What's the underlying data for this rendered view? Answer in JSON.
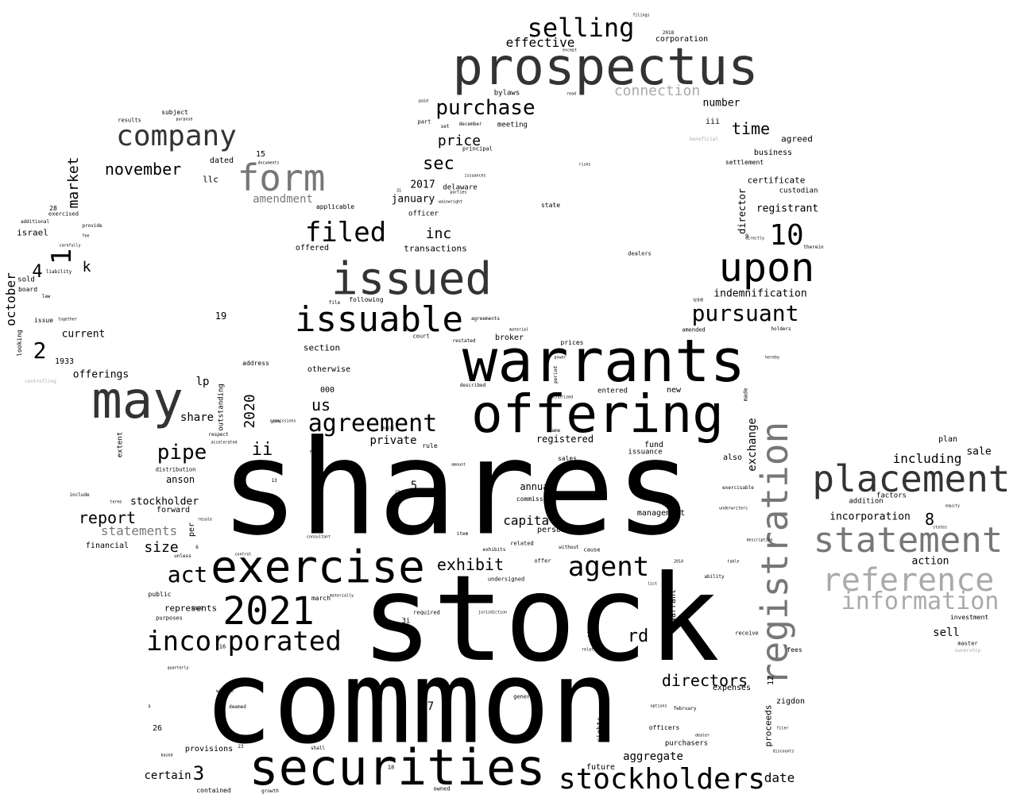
{
  "colors": {
    "background": "#ffffff",
    "black": "#000000",
    "dark": "#333333",
    "mid": "#777777",
    "light": "#aaaaaa"
  },
  "words": [
    {
      "text": "shares",
      "tone": "black"
    },
    {
      "text": "stock",
      "tone": "black"
    },
    {
      "text": "common",
      "tone": "black"
    },
    {
      "text": "warrants",
      "tone": "black"
    },
    {
      "text": "offering",
      "tone": "black"
    },
    {
      "text": "prospectus",
      "tone": "dark"
    },
    {
      "text": "securities",
      "tone": "black"
    },
    {
      "text": "may",
      "tone": "dark"
    },
    {
      "text": "issued",
      "tone": "dark"
    },
    {
      "text": "exercise",
      "tone": "black"
    },
    {
      "text": "registration",
      "tone": "mid"
    },
    {
      "text": "upon",
      "tone": "black"
    },
    {
      "text": "issuable",
      "tone": "black"
    },
    {
      "text": "placement",
      "tone": "dark"
    },
    {
      "text": "statement",
      "tone": "mid"
    },
    {
      "text": "reference",
      "tone": "light"
    },
    {
      "text": "information",
      "tone": "light"
    },
    {
      "text": "stockholders",
      "tone": "black"
    },
    {
      "text": "2021",
      "tone": "black"
    },
    {
      "text": "form",
      "tone": "mid"
    },
    {
      "text": "company",
      "tone": "dark"
    },
    {
      "text": "incorporated",
      "tone": "black"
    },
    {
      "text": "agreement",
      "tone": "black"
    },
    {
      "text": "agent",
      "tone": "black"
    },
    {
      "text": "filed",
      "tone": "black"
    },
    {
      "text": "selling",
      "tone": "black"
    },
    {
      "text": "pursuant",
      "tone": "black"
    },
    {
      "text": "purchase",
      "tone": "black"
    },
    {
      "text": "10",
      "tone": "black"
    },
    {
      "text": "act",
      "tone": "black"
    },
    {
      "text": "directors",
      "tone": "black"
    },
    {
      "text": "pipe",
      "tone": "black"
    },
    {
      "text": "november",
      "tone": "black"
    },
    {
      "text": "connection",
      "tone": "light"
    },
    {
      "text": "price",
      "tone": "black"
    },
    {
      "text": "sec",
      "tone": "black"
    },
    {
      "text": "time",
      "tone": "black"
    },
    {
      "text": "report",
      "tone": "black"
    },
    {
      "text": "exhibit",
      "tone": "black"
    },
    {
      "text": "aggregate",
      "tone": "black"
    },
    {
      "text": "date",
      "tone": "black"
    },
    {
      "text": "capital",
      "tone": "black"
    },
    {
      "text": "us",
      "tone": "black"
    },
    {
      "text": "ii",
      "tone": "black"
    },
    {
      "text": "rd",
      "tone": "black"
    },
    {
      "text": "inc",
      "tone": "black"
    },
    {
      "text": "market",
      "tone": "black"
    },
    {
      "text": "october",
      "tone": "black"
    },
    {
      "text": "2020",
      "tone": "black"
    },
    {
      "text": "size",
      "tone": "black"
    },
    {
      "text": "exchange",
      "tone": "black"
    },
    {
      "text": "statements",
      "tone": "mid"
    },
    {
      "text": "amendment",
      "tone": "mid"
    },
    {
      "text": "effective",
      "tone": "black"
    },
    {
      "text": "including",
      "tone": "black"
    },
    {
      "text": "incorporation",
      "tone": "black"
    },
    {
      "text": "sale",
      "tone": "black"
    },
    {
      "text": "sell",
      "tone": "black"
    },
    {
      "text": "action",
      "tone": "black"
    },
    {
      "text": "certain",
      "tone": "black"
    },
    {
      "text": "private",
      "tone": "black"
    },
    {
      "text": "number",
      "tone": "black"
    },
    {
      "text": "registrant",
      "tone": "black"
    },
    {
      "text": "indemnification",
      "tone": "black"
    },
    {
      "text": "2017",
      "tone": "black"
    },
    {
      "text": "january",
      "tone": "black"
    },
    {
      "text": "stockholder",
      "tone": "black"
    },
    {
      "text": "share",
      "tone": "black"
    },
    {
      "text": "lp",
      "tone": "black"
    },
    {
      "text": "anson",
      "tone": "black"
    },
    {
      "text": "annual",
      "tone": "black"
    },
    {
      "text": "registered",
      "tone": "black"
    },
    {
      "text": "current",
      "tone": "black"
    },
    {
      "text": "offerings",
      "tone": "black"
    },
    {
      "text": "israel",
      "tone": "black"
    },
    {
      "text": "corporation",
      "tone": "black"
    },
    {
      "text": "business",
      "tone": "black"
    },
    {
      "text": "agreed",
      "tone": "black"
    },
    {
      "text": "certificate",
      "tone": "black"
    },
    {
      "text": "director",
      "tone": "black"
    },
    {
      "text": "section",
      "tone": "black"
    },
    {
      "text": "otherwise",
      "tone": "black"
    },
    {
      "text": "broker",
      "tone": "black"
    },
    {
      "text": "prices",
      "tone": "black"
    },
    {
      "text": "transactions",
      "tone": "black"
    },
    {
      "text": "offered",
      "tone": "black"
    },
    {
      "text": "delaware",
      "tone": "black"
    },
    {
      "text": "officer",
      "tone": "black"
    },
    {
      "text": "meeting",
      "tone": "black"
    },
    {
      "text": "bylaws",
      "tone": "black"
    },
    {
      "text": "fund",
      "tone": "black"
    },
    {
      "text": "issuance",
      "tone": "black"
    },
    {
      "text": "management",
      "tone": "black"
    },
    {
      "text": "person",
      "tone": "black"
    },
    {
      "text": "commission",
      "tone": "black"
    },
    {
      "text": "forward",
      "tone": "black"
    },
    {
      "text": "financial",
      "tone": "black"
    },
    {
      "text": "represents",
      "tone": "black"
    },
    {
      "text": "provisions",
      "tone": "black"
    },
    {
      "text": "purchasers",
      "tone": "black"
    },
    {
      "text": "officers",
      "tone": "black"
    },
    {
      "text": "expenses",
      "tone": "black"
    },
    {
      "text": "zigdon",
      "tone": "black"
    },
    {
      "text": "future",
      "tone": "black"
    },
    {
      "text": "plan",
      "tone": "black"
    },
    {
      "text": "addition",
      "tone": "black"
    },
    {
      "text": "factors",
      "tone": "black"
    },
    {
      "text": "warrant",
      "tone": "black"
    },
    {
      "text": "proceeds",
      "tone": "black"
    },
    {
      "text": "outstanding",
      "tone": "black"
    },
    {
      "text": "custodian",
      "tone": "black"
    },
    {
      "text": "llc",
      "tone": "black"
    },
    {
      "text": "dated",
      "tone": "black"
    },
    {
      "text": "subject",
      "tone": "black"
    },
    {
      "text": "results",
      "tone": "black"
    },
    {
      "text": "also",
      "tone": "black"
    },
    {
      "text": "new",
      "tone": "black"
    },
    {
      "text": "entered",
      "tone": "black"
    },
    {
      "text": "per",
      "tone": "black"
    },
    {
      "text": "risk",
      "tone": "black"
    },
    {
      "text": "march",
      "tone": "black"
    },
    {
      "text": "public",
      "tone": "black"
    },
    {
      "text": "purposes",
      "tone": "black"
    },
    {
      "text": "distribution",
      "tone": "black"
    },
    {
      "text": "rights",
      "tone": "black"
    },
    {
      "text": "8",
      "tone": "black"
    },
    {
      "text": "7",
      "tone": "black"
    },
    {
      "text": "3",
      "tone": "black"
    },
    {
      "text": "1",
      "tone": "black"
    },
    {
      "text": "2",
      "tone": "black"
    },
    {
      "text": "4",
      "tone": "black"
    },
    {
      "text": "k",
      "tone": "black"
    },
    {
      "text": "iii",
      "tone": "black"
    },
    {
      "text": "000",
      "tone": "black"
    },
    {
      "text": "15",
      "tone": "black"
    },
    {
      "text": "19",
      "tone": "black"
    },
    {
      "text": "1933",
      "tone": "black"
    },
    {
      "text": "26",
      "tone": "black"
    },
    {
      "text": "14",
      "tone": "black"
    },
    {
      "text": "sold",
      "tone": "black"
    },
    {
      "text": "board",
      "tone": "black"
    },
    {
      "text": "issue",
      "tone": "black"
    },
    {
      "text": "looking",
      "tone": "black"
    },
    {
      "text": "extent",
      "tone": "black"
    },
    {
      "text": "address",
      "tone": "black"
    },
    {
      "text": "settlement",
      "tone": "black"
    },
    {
      "text": "state",
      "tone": "black"
    },
    {
      "text": "dealers",
      "tone": "black"
    },
    {
      "text": "amended",
      "tone": "black"
    },
    {
      "text": "use",
      "tone": "black"
    },
    {
      "text": "investment",
      "tone": "black"
    },
    {
      "text": "master",
      "tone": "black"
    },
    {
      "text": "fees",
      "tone": "black"
    },
    {
      "text": "receive",
      "tone": "black"
    },
    {
      "text": "general",
      "tone": "black"
    },
    {
      "text": "february",
      "tone": "black"
    },
    {
      "text": "undersigned",
      "tone": "black"
    },
    {
      "text": "related",
      "tone": "black"
    },
    {
      "text": "cause",
      "tone": "black"
    },
    {
      "text": "required",
      "tone": "black"
    },
    {
      "text": "shall",
      "tone": "black"
    },
    {
      "text": "growth",
      "tone": "black"
    },
    {
      "text": "owned",
      "tone": "black"
    },
    {
      "text": "contained",
      "tone": "black"
    },
    {
      "text": "deemed",
      "tone": "black"
    },
    {
      "text": "within",
      "tone": "black"
    },
    {
      "text": "exercisable",
      "tone": "black"
    },
    {
      "text": "rule",
      "tone": "black"
    },
    {
      "text": "sales",
      "tone": "black"
    },
    {
      "text": "item",
      "tone": "black"
    },
    {
      "text": "offer",
      "tone": "black"
    },
    {
      "text": "without",
      "tone": "black"
    },
    {
      "text": "ability",
      "tone": "black"
    },
    {
      "text": "exercised",
      "tone": "black"
    },
    {
      "text": "additional",
      "tone": "black"
    },
    {
      "text": "provide",
      "tone": "black"
    },
    {
      "text": "liability",
      "tone": "black"
    },
    {
      "text": "applicable",
      "tone": "black"
    },
    {
      "text": "following",
      "tone": "black"
    },
    {
      "text": "agreements",
      "tone": "black"
    },
    {
      "text": "court",
      "tone": "black"
    },
    {
      "text": "principal",
      "tone": "black"
    },
    {
      "text": "december",
      "tone": "black"
    },
    {
      "text": "part",
      "tone": "black"
    },
    {
      "text": "set",
      "tone": "black"
    },
    {
      "text": "paid",
      "tone": "black"
    },
    {
      "text": "read",
      "tone": "black"
    },
    {
      "text": "except",
      "tone": "black"
    },
    {
      "text": "2018",
      "tone": "black"
    },
    {
      "text": "documents",
      "tone": "black"
    },
    {
      "text": "28",
      "tone": "black"
    },
    {
      "text": "law",
      "tone": "black"
    },
    {
      "text": "fee",
      "tone": "black"
    },
    {
      "text": "controlling",
      "tone": "light"
    },
    {
      "text": "beneficial",
      "tone": "light"
    },
    {
      "text": "ownership",
      "tone": "light"
    },
    {
      "text": "york",
      "tone": "black"
    },
    {
      "text": "commissions",
      "tone": "black"
    },
    {
      "text": "accelerated",
      "tone": "black"
    },
    {
      "text": "respect",
      "tone": "black"
    },
    {
      "text": "resale",
      "tone": "black"
    },
    {
      "text": "5",
      "tone": "black"
    },
    {
      "text": "6",
      "tone": "black"
    },
    {
      "text": "12",
      "tone": "black"
    },
    {
      "text": "13",
      "tone": "black"
    },
    {
      "text": "16",
      "tone": "black"
    },
    {
      "text": "18",
      "tone": "black"
    },
    {
      "text": "23",
      "tone": "black"
    },
    {
      "text": "11",
      "tone": "black"
    },
    {
      "text": "31",
      "tone": "black"
    },
    {
      "text": "27",
      "tone": "black"
    },
    {
      "text": "2019",
      "tone": "black"
    },
    {
      "text": "2014",
      "tone": "black"
    },
    {
      "text": "filer",
      "tone": "black"
    },
    {
      "text": "discounts",
      "tone": "black"
    },
    {
      "text": "holders",
      "tone": "black"
    },
    {
      "text": "therein",
      "tone": "black"
    },
    {
      "text": "table",
      "tone": "black"
    },
    {
      "text": "equity",
      "tone": "black"
    },
    {
      "text": "states",
      "tone": "black"
    },
    {
      "text": "unless",
      "tone": "black"
    },
    {
      "text": "dealer",
      "tone": "black"
    },
    {
      "text": "options",
      "tone": "black"
    },
    {
      "text": "jurisdiction",
      "tone": "black"
    },
    {
      "text": "filings",
      "tone": "black"
    },
    {
      "text": "risks",
      "tone": "black"
    },
    {
      "text": "exhibits",
      "tone": "black"
    },
    {
      "text": "power",
      "tone": "black"
    },
    {
      "text": "period",
      "tone": "black"
    },
    {
      "text": "list",
      "tone": "black"
    },
    {
      "text": "file",
      "tone": "black"
    },
    {
      "text": "hereby",
      "tone": "black"
    },
    {
      "text": "made",
      "tone": "black"
    },
    {
      "text": "name",
      "tone": "black"
    },
    {
      "text": "control",
      "tone": "black"
    },
    {
      "text": "material",
      "tone": "black"
    },
    {
      "text": "quarterly",
      "tone": "black"
    },
    {
      "text": "basis",
      "tone": "black"
    },
    {
      "text": "years",
      "tone": "black"
    },
    {
      "text": "amount",
      "tone": "black"
    },
    {
      "text": "described",
      "tone": "black"
    },
    {
      "text": "together",
      "tone": "black"
    },
    {
      "text": "carefully",
      "tone": "black"
    },
    {
      "text": "include",
      "tone": "black"
    },
    {
      "text": "terms",
      "tone": "black"
    },
    {
      "text": "based",
      "tone": "black"
    },
    {
      "text": "relating",
      "tone": "black"
    },
    {
      "text": "description",
      "tone": "black"
    },
    {
      "text": "underwriters",
      "tone": "black"
    },
    {
      "text": "consultant",
      "tone": "black"
    },
    {
      "text": "authorized",
      "tone": "black"
    },
    {
      "text": "wainwright",
      "tone": "black"
    },
    {
      "text": "parties",
      "tone": "black"
    },
    {
      "text": "issuances",
      "tone": "black"
    },
    {
      "text": "directly",
      "tone": "black"
    },
    {
      "text": "purpose",
      "tone": "black"
    },
    {
      "text": "restated",
      "tone": "black"
    },
    {
      "text": "materially",
      "tone": "black"
    },
    {
      "text": "3i",
      "tone": "black"
    },
    {
      "text": "9",
      "tone": "black"
    },
    {
      "text": "s",
      "tone": "black"
    },
    {
      "text": "b",
      "tone": "black"
    }
  ]
}
